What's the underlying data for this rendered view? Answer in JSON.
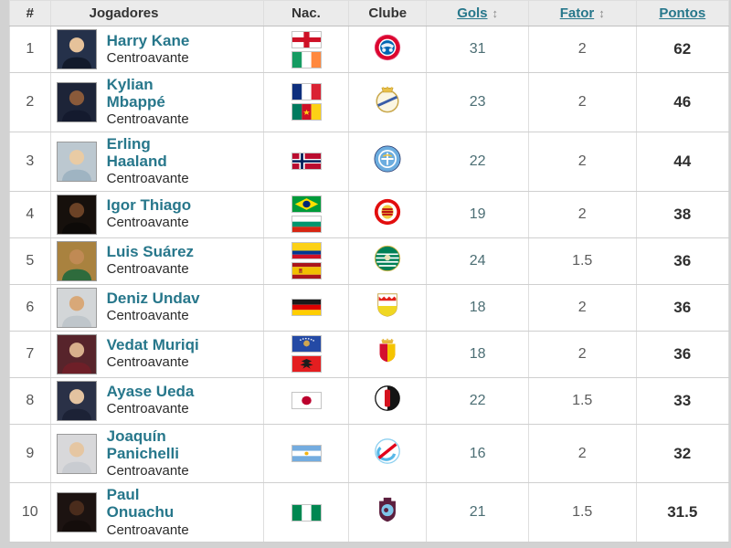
{
  "colors": {
    "accent_link": "#27778b",
    "header_background": "#ebebeb",
    "goals_value": "#4c6e74",
    "points_value": "#2f2f2f"
  },
  "table": {
    "sort_icon": "↕",
    "columns": [
      {
        "label": "#",
        "sortable": false
      },
      {
        "label": "Jogadores",
        "sortable": false
      },
      {
        "label": "Nac.",
        "sortable": false
      },
      {
        "label": "Clube",
        "sortable": false
      },
      {
        "label": "Gols",
        "sortable": true
      },
      {
        "label": "Fator",
        "sortable": true
      },
      {
        "label": "Pontos",
        "sortable": true
      }
    ],
    "players": [
      {
        "rank": 1,
        "name": "Harry Kane",
        "position": "Centroavante",
        "flags": [
          "england",
          "ireland"
        ],
        "club": "bayern-munich",
        "goals": 31,
        "factor": 2,
        "points": 62,
        "photo_bg": "#25314a",
        "skin": "#e6c29a",
        "shirt": "#121a2b"
      },
      {
        "rank": 2,
        "name": "Kylian Mbappé",
        "position": "Centroavante",
        "flags": [
          "france",
          "cameroon"
        ],
        "club": "real-madrid",
        "goals": 23,
        "factor": 2,
        "points": 46,
        "photo_bg": "#1d2438",
        "skin": "#8a5a3a",
        "shirt": "#141a2e"
      },
      {
        "rank": 3,
        "name": "Erling Haaland",
        "position": "Centroavante",
        "flags": [
          "norway"
        ],
        "club": "manchester-city",
        "goals": 22,
        "factor": 2,
        "points": 44,
        "photo_bg": "#bcc8d0",
        "skin": "#e9cba4",
        "shirt": "#9fb4c2"
      },
      {
        "rank": 4,
        "name": "Igor Thiago",
        "position": "Centroavante",
        "flags": [
          "brazil",
          "bulgaria"
        ],
        "club": "brentford",
        "goals": 19,
        "factor": 2,
        "points": 38,
        "photo_bg": "#16100c",
        "skin": "#6b4226",
        "shirt": "#0d0a08"
      },
      {
        "rank": 5,
        "name": "Luis Suárez",
        "position": "Centroavante",
        "flags": [
          "colombia",
          "spain"
        ],
        "club": "sporting-cp",
        "goals": 24,
        "factor": 1.5,
        "points": 36,
        "photo_bg": "#a9823f",
        "skin": "#c08a54",
        "shirt": "#2e6b3c"
      },
      {
        "rank": 6,
        "name": "Deniz Undav",
        "position": "Centroavante",
        "flags": [
          "germany"
        ],
        "club": "stuttgart",
        "goals": 18,
        "factor": 2,
        "points": 36,
        "photo_bg": "#d3d6d8",
        "skin": "#d8a878",
        "shirt": "#bfc6cb"
      },
      {
        "rank": 7,
        "name": "Vedat Muriqi",
        "position": "Centroavante",
        "flags": [
          "kosovo",
          "albania"
        ],
        "club": "mallorca",
        "goals": 18,
        "factor": 2,
        "points": 36,
        "photo_bg": "#57242b",
        "skin": "#d8b08c",
        "shirt": "#6e1f28"
      },
      {
        "rank": 8,
        "name": "Ayase Ueda",
        "position": "Centroavante",
        "flags": [
          "japan"
        ],
        "club": "feyenoord",
        "goals": 22,
        "factor": 1.5,
        "points": 33,
        "photo_bg": "#2a3147",
        "skin": "#e3c3a0",
        "shirt": "#1c2236"
      },
      {
        "rank": 9,
        "name": "Joaquín Panichelli",
        "position": "Centroavante",
        "flags": [
          "argentina"
        ],
        "club": "strasbourg",
        "goals": 16,
        "factor": 2,
        "points": 32,
        "photo_bg": "#d8d8da",
        "skin": "#e5c6a2",
        "shirt": "#c9ccd1"
      },
      {
        "rank": 10,
        "name": "Paul Onuachu",
        "position": "Centroavante",
        "flags": [
          "nigeria"
        ],
        "club": "trabzonspor",
        "goals": 21,
        "factor": 1.5,
        "points": 31.5,
        "photo_bg": "#1c1311",
        "skin": "#4a2c1c",
        "shirt": "#140d0b"
      }
    ]
  }
}
